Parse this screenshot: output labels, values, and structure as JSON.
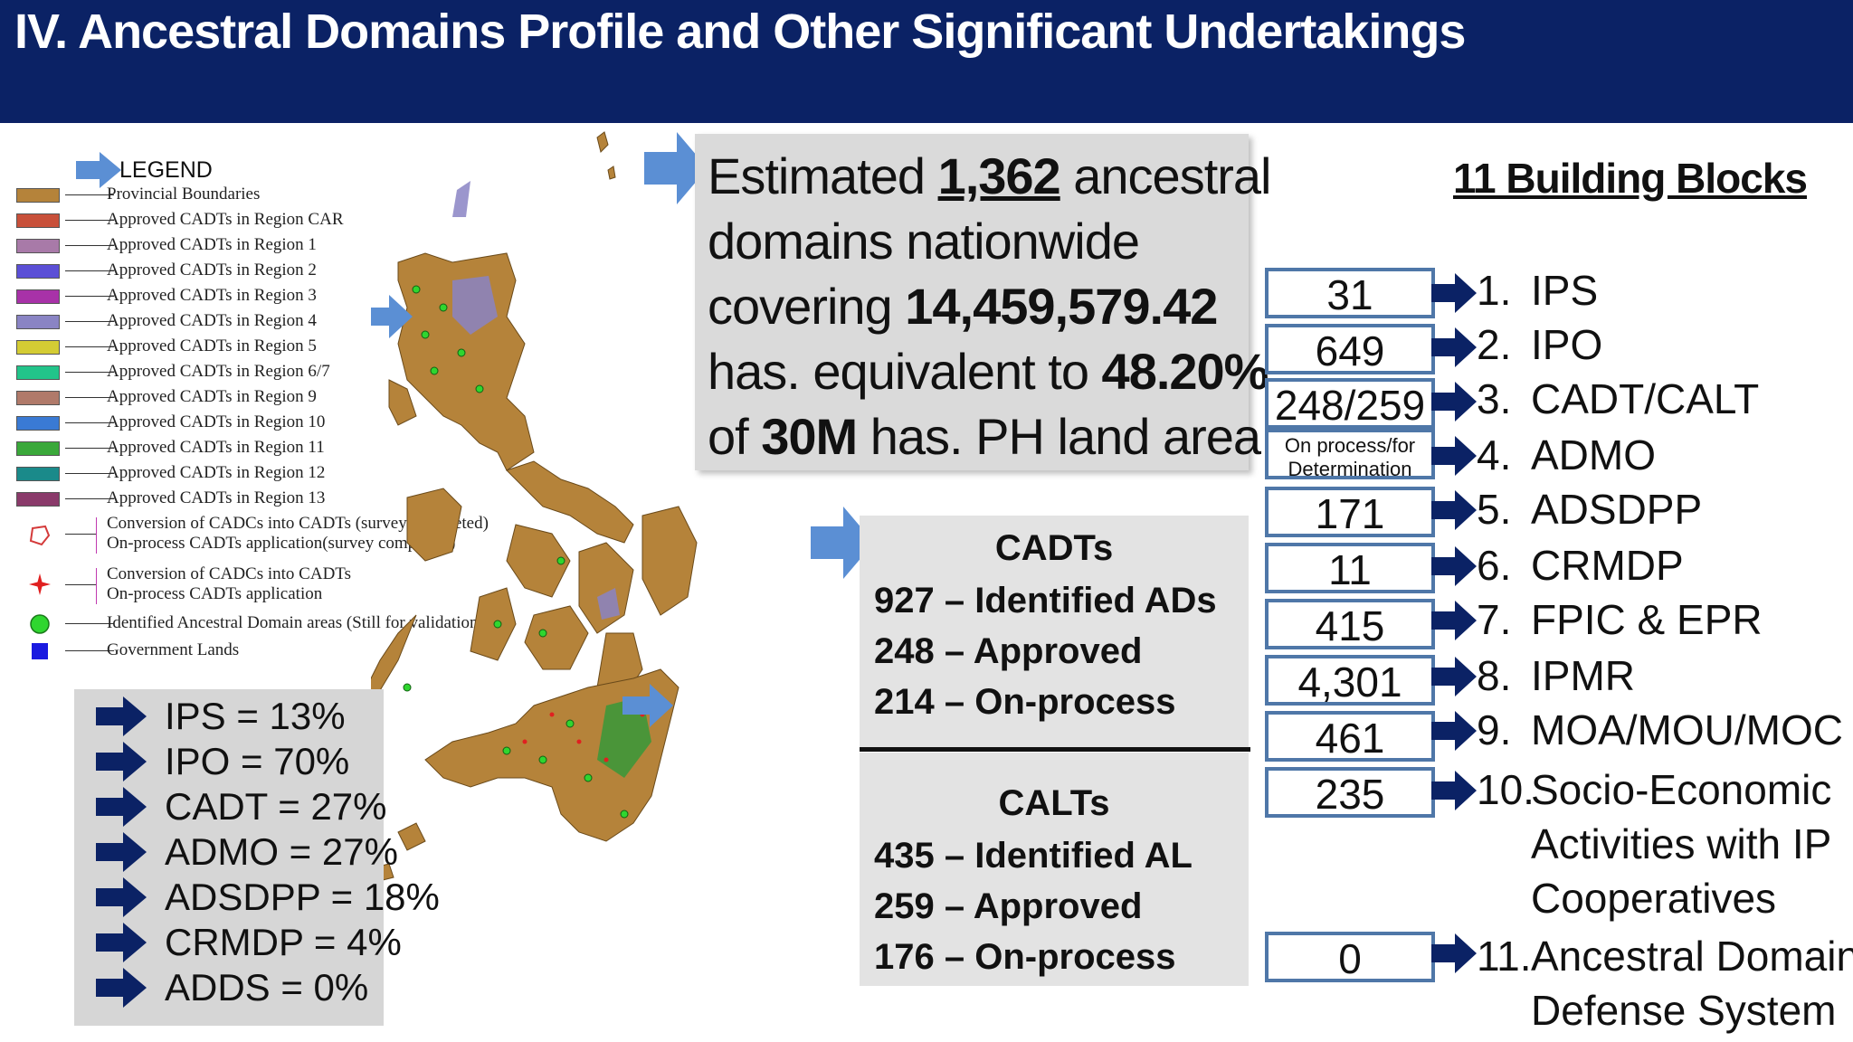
{
  "header": {
    "title": "IV. Ancestral Domains Profile and Other Significant Undertakings"
  },
  "legend": {
    "title": "LEGEND",
    "items": [
      {
        "label": "Provincial Boundaries",
        "color": "#b5833a"
      },
      {
        "label": "Approved CADTs in Region CAR",
        "color": "#c8503a"
      },
      {
        "label": "Approved CADTs in Region 1",
        "color": "#a87aa8"
      },
      {
        "label": "Approved CADTs in Region 2",
        "color": "#5b4fd6"
      },
      {
        "label": "Approved CADTs in Region 3",
        "color": "#a832a8"
      },
      {
        "label": "Approved CADTs in Region 4",
        "color": "#8a84c4"
      },
      {
        "label": "Approved CADTs in Region 5",
        "color": "#d4cc34"
      },
      {
        "label": "Approved CADTs in Region 6/7",
        "color": "#22c48a"
      },
      {
        "label": "Approved CADTs in Region 9",
        "color": "#b07a6a"
      },
      {
        "label": "Approved CADTs in Region 10",
        "color": "#3a7ad4"
      },
      {
        "label": "Approved CADTs in Region 11",
        "color": "#3aa83a"
      },
      {
        "label": "Approved CADTs in Region 12",
        "color": "#1a8a8a"
      },
      {
        "label": "Approved CADTs in Region 13",
        "color": "#8a3a6a"
      }
    ],
    "special": [
      {
        "line1": "Conversion of CADCs into CADTs (survey completed)",
        "line2": "On-process CADTs application(survey completed)"
      },
      {
        "line1": "Conversion of CADCs into CADTs",
        "line2": "On-process CADTs application"
      },
      {
        "line1": "Identified Ancestral Domain areas (Still for validation)"
      },
      {
        "line1": "Government Lands"
      }
    ]
  },
  "percentages": [
    "IPS = 13%",
    "IPO = 70%",
    "CADT = 27%",
    "ADMO = 27%",
    "ADSDPP = 18%",
    "CRMDP = 4%",
    "ADDS = 0%"
  ],
  "estimate": {
    "line1_pre": "Estimated ",
    "line1_num": "1,362",
    "line1_post": " ancestral",
    "line2": "domains nationwide",
    "line3_pre": "covering ",
    "line3_num": "14,459,579.42",
    "line4_pre": "has. equivalent to ",
    "line4_num": "48.20%",
    "line5_pre": "of ",
    "line5_num": "30M",
    "line5_post": " has. PH land area"
  },
  "cadts": {
    "title": "CADTs",
    "lines": [
      "927 – Identified ADs",
      "248 – Approved",
      "214 – On-process"
    ]
  },
  "calts": {
    "title": "CALTs",
    "lines": [
      "435 – Identified AL",
      "259 – Approved",
      "176 – On-process"
    ]
  },
  "building_blocks": {
    "title": "11 Building Blocks",
    "values": [
      "31",
      "649",
      "248/259",
      "On process/for Determination",
      "171",
      "11",
      "415",
      "4,301",
      "461",
      "235",
      "0"
    ],
    "items": [
      {
        "num": "1.",
        "label": "IPS"
      },
      {
        "num": "2.",
        "label": "IPO"
      },
      {
        "num": "3.",
        "label": "CADT/CALT"
      },
      {
        "num": "4.",
        "label": "ADMO"
      },
      {
        "num": "5.",
        "label": "ADSDPP"
      },
      {
        "num": "6.",
        "label": "CRMDP"
      },
      {
        "num": "7.",
        "label": "FPIC & EPR"
      },
      {
        "num": "8.",
        "label": "IPMR"
      },
      {
        "num": "9.",
        "label": "MOA/MOU/MOC"
      },
      {
        "num": "10.",
        "label": "Socio-Economic",
        "cont": [
          "Activities with IP",
          "Cooperatives"
        ]
      },
      {
        "num": "11.",
        "label": "Ancestral Domain",
        "cont": [
          "Defense System"
        ]
      }
    ]
  },
  "colors": {
    "header_bg": "#0b2265",
    "arrow_blue": "#5b8fd4",
    "arrow_navy": "#0b2265",
    "box_border": "#4f77a8",
    "map_land": "#b5833a"
  }
}
